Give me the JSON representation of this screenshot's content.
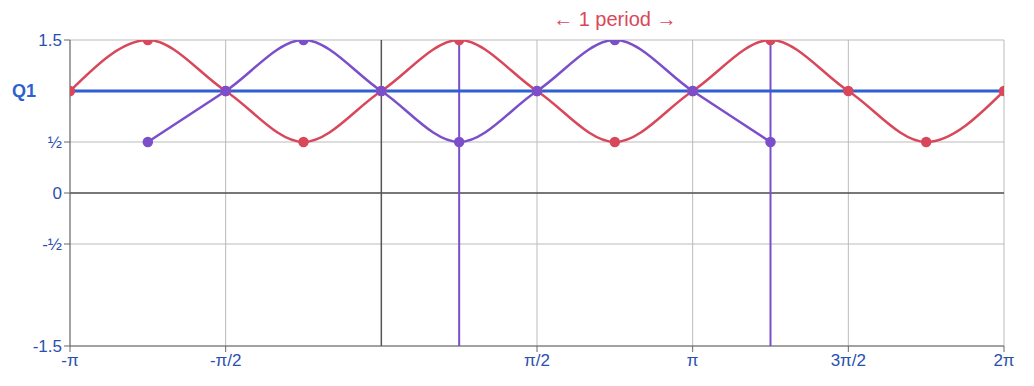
{
  "chart_data": {
    "type": "line",
    "grid": true,
    "tick_labels": true,
    "xlim": [
      -3.1416,
      6.2832
    ],
    "xticks": [
      {
        "value": -3.1416,
        "label": "-π"
      },
      {
        "value": -1.5708,
        "label": "-π/2"
      },
      {
        "value": 1.5708,
        "label": "π/2"
      },
      {
        "value": 3.1416,
        "label": "π"
      },
      {
        "value": 4.7124,
        "label": "3π/2"
      },
      {
        "value": 6.2832,
        "label": "2π"
      }
    ],
    "ylim": [
      -1.5,
      1.5
    ],
    "yticks": [
      -1.5,
      {
        "value": -0.5,
        "label": "-½"
      },
      0,
      {
        "value": 0.5,
        "label": "½"
      },
      1.5
    ],
    "series": [
      {
        "color": "#d9475a",
        "marker": "circle",
        "line_style": "solid",
        "x": [
          -3.1416,
          -2.3562,
          -1.5708,
          -0.7854,
          0,
          0.7854,
          1.5708,
          2.3562,
          3.1416,
          3.927,
          4.7124,
          5.4978,
          6.2832
        ],
        "values": [
          1,
          1.5,
          1,
          0.5,
          1,
          1.5,
          1,
          0.5,
          1,
          1.5,
          1,
          0.5,
          1
        ]
      },
      {
        "color": "#7b4fc9",
        "marker": "circle",
        "line_style": "solid",
        "x": [
          -2.3562,
          -1.5708,
          -0.7854,
          0,
          0.7854,
          1.5708,
          2.3562,
          3.1416,
          3.927
        ],
        "values": [
          0.5,
          1,
          1.5,
          1,
          0.5,
          1,
          1.5,
          1,
          0.5
        ]
      },
      {
        "label": "Q1",
        "color": "#2f5fd0",
        "marker": "none",
        "line_style": "solid",
        "x": [
          -3.1416,
          6.2832
        ],
        "values": [
          1,
          1
        ]
      }
    ],
    "annotations": [
      {
        "text": "← 1 period →",
        "x_start": 0.7854,
        "x_end": 3.927,
        "color": "#d9475a"
      }
    ]
  }
}
